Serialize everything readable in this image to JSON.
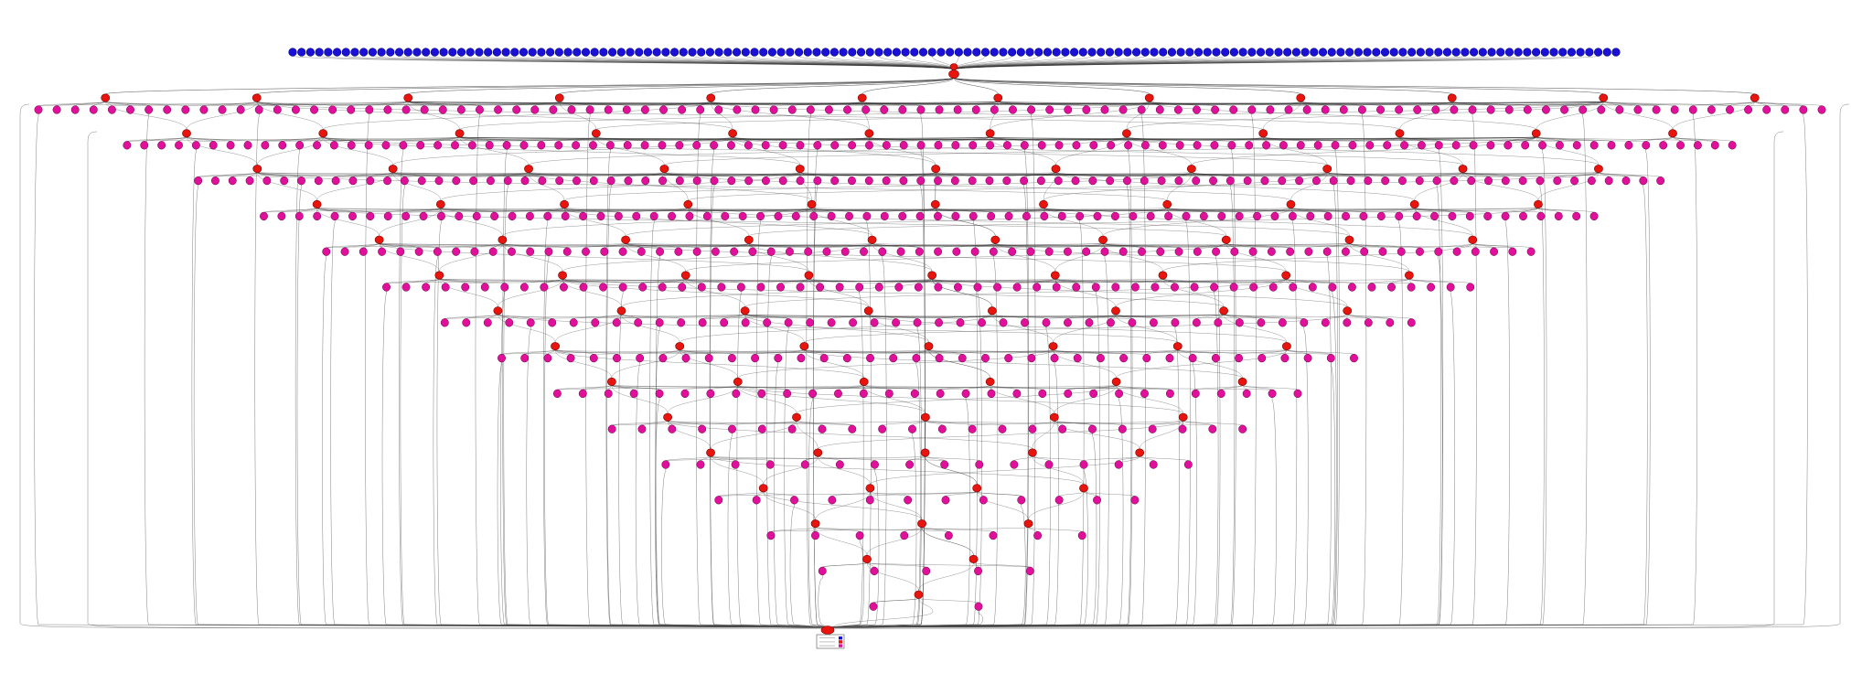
{
  "diagram": {
    "type": "dependency-graph",
    "input_node_count": 150,
    "levels": [
      {
        "operations": 12,
        "tasks": 98
      },
      {
        "operations": 12,
        "tasks": 94
      },
      {
        "operations": 11,
        "tasks": 86
      },
      {
        "operations": 11,
        "tasks": 76
      },
      {
        "operations": 10,
        "tasks": 66
      },
      {
        "operations": 9,
        "tasks": 56
      },
      {
        "operations": 8,
        "tasks": 46
      },
      {
        "operations": 7,
        "tasks": 38
      },
      {
        "operations": 6,
        "tasks": 30
      },
      {
        "operations": 5,
        "tasks": 22
      },
      {
        "operations": 5,
        "tasks": 16
      },
      {
        "operations": 4,
        "tasks": 12
      },
      {
        "operations": 3,
        "tasks": 8
      },
      {
        "operations": 2,
        "tasks": 5
      },
      {
        "operations": 1,
        "tasks": 2
      }
    ],
    "colors": {
      "input": "#1a10d6",
      "operation": "#e8140e",
      "task": "#e0109a",
      "edge": "#2b2b2b",
      "background": "#ffffff"
    },
    "legend": {
      "placement": "bottom-center",
      "swatches": [
        "#1a10d6",
        "#e8140e",
        "#e0109a"
      ]
    }
  }
}
